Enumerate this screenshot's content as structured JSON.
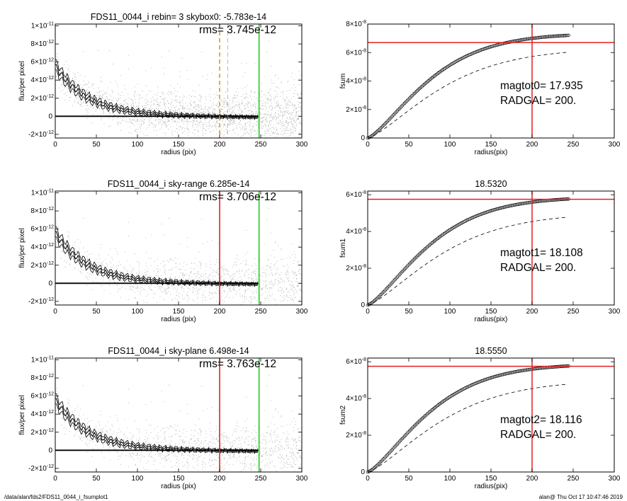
{
  "footer": {
    "left": "/data/alan/fds2/FDS11_0044_i_fsumplot1",
    "right": "alan@  Thu Oct 17 10:47:46 2019"
  },
  "colors": {
    "points": "#a8a8a8",
    "red": "#e02020",
    "green": "#22cc22",
    "orange": "#e09530",
    "line": "#000000"
  },
  "chart_data": [
    {
      "type": "scatter",
      "title": "FDS11_0044_i rebin= 3    skybox0: -5.783e-14",
      "annotation": "rms= 3.745e-12",
      "xlabel": "radius (pix)",
      "ylabel": "flux/per pixel",
      "xlim": [
        0,
        300
      ],
      "ylim": [
        -2.4e-12,
        1.02e-11
      ],
      "xticks": [
        0,
        50,
        100,
        150,
        200,
        250,
        300
      ],
      "yticks": [
        {
          "v": -2e-12,
          "m": "-2×10",
          "e": "-12"
        },
        {
          "v": 0,
          "m": "0",
          "e": ""
        },
        {
          "v": 2e-12,
          "m": "2×10",
          "e": "-12"
        },
        {
          "v": 4e-12,
          "m": "4×10",
          "e": "-12"
        },
        {
          "v": 6e-12,
          "m": "6×10",
          "e": "-12"
        },
        {
          "v": 8e-12,
          "m": "8×10",
          "e": "-12"
        },
        {
          "v": 1e-11,
          "m": "1×10",
          "e": "-11"
        }
      ],
      "vlines": [
        {
          "x": 200,
          "color": "orange",
          "style": "dashed"
        },
        {
          "x": 210,
          "color": "gray",
          "style": "dashed"
        },
        {
          "x": 248,
          "color": "green",
          "style": "solid"
        }
      ]
    },
    {
      "type": "line",
      "title": "",
      "ylabel": "fsum",
      "xlabel": "radius(pix)",
      "xlim": [
        0,
        300
      ],
      "ylim": [
        0,
        8e-08
      ],
      "xticks": [
        0,
        50,
        100,
        150,
        200,
        250,
        300
      ],
      "yticks": [
        {
          "v": 0,
          "m": "0",
          "e": ""
        },
        {
          "v": 2e-08,
          "m": "2×10",
          "e": "-8"
        },
        {
          "v": 4e-08,
          "m": "4×10",
          "e": "-8"
        },
        {
          "v": 6e-08,
          "m": "6×10",
          "e": "-8"
        },
        {
          "v": 8e-08,
          "m": "8×10",
          "e": "-8"
        }
      ],
      "label1": "magtot0=  17.935",
      "label2": "RADGAL=    200.",
      "ftot": 7.35e-08,
      "dashed_tot": 6.3e-08,
      "hline": 6.7e-08,
      "vline": 200
    },
    {
      "type": "scatter",
      "title": "FDS11_0044_i sky-range  6.285e-14",
      "annotation": "rms= 3.706e-12",
      "xlabel": "radius (pix)",
      "ylabel": "flux/per pixel",
      "xlim": [
        0,
        300
      ],
      "ylim": [
        -2.4e-12,
        1.02e-11
      ],
      "xticks": [
        0,
        50,
        100,
        150,
        200,
        250,
        300
      ],
      "yticks": [
        {
          "v": -2e-12,
          "m": "-2×10",
          "e": "-12"
        },
        {
          "v": 0,
          "m": "0",
          "e": ""
        },
        {
          "v": 2e-12,
          "m": "2×10",
          "e": "-12"
        },
        {
          "v": 4e-12,
          "m": "4×10",
          "e": "-12"
        },
        {
          "v": 6e-12,
          "m": "6×10",
          "e": "-12"
        },
        {
          "v": 8e-12,
          "m": "8×10",
          "e": "-12"
        },
        {
          "v": 1e-11,
          "m": "1×10",
          "e": "-11"
        }
      ],
      "vlines": [
        {
          "x": 200,
          "color": "red",
          "style": "solid"
        },
        {
          "x": 248,
          "color": "green",
          "style": "solid"
        }
      ]
    },
    {
      "type": "line",
      "title": "18.5320",
      "ylabel": "fsum1",
      "xlabel": "radius(pix)",
      "xlim": [
        0,
        300
      ],
      "ylim": [
        0,
        6.2e-08
      ],
      "xticks": [
        0,
        50,
        100,
        150,
        200,
        250,
        300
      ],
      "yticks": [
        {
          "v": 0,
          "m": "0",
          "e": ""
        },
        {
          "v": 2e-08,
          "m": "2×10",
          "e": "-8"
        },
        {
          "v": 4e-08,
          "m": "4×10",
          "e": "-8"
        },
        {
          "v": 6e-08,
          "m": "6×10",
          "e": "-8"
        }
      ],
      "label1": "magtot1=  18.108",
      "label2": "RADGAL=    200.",
      "ftot": 5.88e-08,
      "dashed_tot": 5e-08,
      "hline": 5.75e-08,
      "vline": 200
    },
    {
      "type": "scatter",
      "title": "FDS11_0044_i sky-plane  6.498e-14",
      "annotation": "rms= 3.763e-12",
      "xlabel": "radius (pix)",
      "ylabel": "flux/per pixel",
      "xlim": [
        0,
        300
      ],
      "ylim": [
        -2.4e-12,
        1.02e-11
      ],
      "xticks": [
        0,
        50,
        100,
        150,
        200,
        250,
        300
      ],
      "yticks": [
        {
          "v": -2e-12,
          "m": "-2×10",
          "e": "-12"
        },
        {
          "v": 0,
          "m": "0",
          "e": ""
        },
        {
          "v": 2e-12,
          "m": "2×10",
          "e": "-12"
        },
        {
          "v": 4e-12,
          "m": "4×10",
          "e": "-12"
        },
        {
          "v": 6e-12,
          "m": "6×10",
          "e": "-12"
        },
        {
          "v": 8e-12,
          "m": "8×10",
          "e": "-12"
        },
        {
          "v": 1e-11,
          "m": "1×10",
          "e": "-11"
        }
      ],
      "vlines": [
        {
          "x": 200,
          "color": "red",
          "style": "solid"
        },
        {
          "x": 248,
          "color": "green",
          "style": "solid"
        }
      ]
    },
    {
      "type": "line",
      "title": "18.5550",
      "ylabel": "fsum2",
      "xlabel": "radius(pix)",
      "xlim": [
        0,
        300
      ],
      "ylim": [
        0,
        6.2e-08
      ],
      "xticks": [
        0,
        50,
        100,
        150,
        200,
        250,
        300
      ],
      "yticks": [
        {
          "v": 0,
          "m": "0",
          "e": ""
        },
        {
          "v": 2e-08,
          "m": "2×10",
          "e": "-8"
        },
        {
          "v": 4e-08,
          "m": "4×10",
          "e": "-8"
        },
        {
          "v": 6e-08,
          "m": "6×10",
          "e": "-8"
        }
      ],
      "label1": "magtot2=  18.116",
      "label2": "RADGAL=    200.",
      "ftot": 5.88e-08,
      "dashed_tot": 5e-08,
      "hline": 5.75e-08,
      "vline": 200
    }
  ]
}
